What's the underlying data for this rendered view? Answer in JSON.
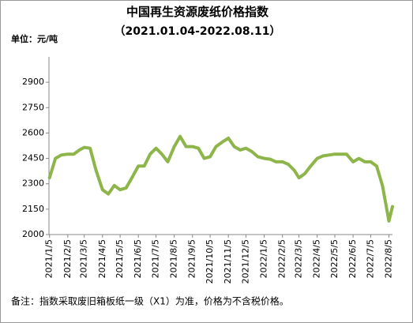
{
  "chart_data": {
    "type": "line",
    "title": "中国再生资源废纸价格指数",
    "subtitle": "（2021.01.04-2022.08.11）",
    "y_label": "单位：元/吨",
    "note": "备注：指数采取废旧箱板纸一级（X1）为准，价格为不含税价格。",
    "ylim": [
      2000,
      3050
    ],
    "yticks": [
      2000,
      2150,
      2300,
      2450,
      2600,
      2750,
      2900
    ],
    "xlim": [
      "2021/1/4",
      "2022/8/11"
    ],
    "xticks": [
      "2021/1/5",
      "2021/2/5",
      "2021/3/5",
      "2021/4/5",
      "2021/5/5",
      "2021/6/5",
      "2021/7/5",
      "2021/8/5",
      "2021/9/5",
      "2021/10/5",
      "2021/11/5",
      "2021/12/5",
      "2022/1/5",
      "2022/2/5",
      "2022/3/5",
      "2022/4/5",
      "2022/5/5",
      "2022/6/5",
      "2022/7/5",
      "2022/8/5"
    ],
    "x": [
      "2021/1/5",
      "2021/1/15",
      "2021/1/25",
      "2021/2/5",
      "2021/2/15",
      "2021/2/25",
      "2021/3/5",
      "2021/3/15",
      "2021/3/25",
      "2021/4/5",
      "2021/4/15",
      "2021/4/25",
      "2021/5/5",
      "2021/5/15",
      "2021/5/25",
      "2021/6/5",
      "2021/6/15",
      "2021/6/25",
      "2021/7/5",
      "2021/7/15",
      "2021/7/25",
      "2021/8/5",
      "2021/8/15",
      "2021/8/25",
      "2021/9/5",
      "2021/9/15",
      "2021/9/25",
      "2021/10/5",
      "2021/10/15",
      "2021/10/25",
      "2021/11/5",
      "2021/11/15",
      "2021/11/25",
      "2021/12/5",
      "2021/12/15",
      "2021/12/25",
      "2022/1/5",
      "2022/1/15",
      "2022/1/25",
      "2022/2/5",
      "2022/2/15",
      "2022/2/25",
      "2022/3/5",
      "2022/3/15",
      "2022/3/25",
      "2022/4/5",
      "2022/4/15",
      "2022/4/25",
      "2022/5/5",
      "2022/5/15",
      "2022/5/25",
      "2022/6/5",
      "2022/6/15",
      "2022/6/25",
      "2022/7/5",
      "2022/7/15",
      "2022/7/25",
      "2022/8/5",
      "2022/8/11"
    ],
    "series": [
      {
        "color": "#8db54a",
        "values": [
          2335,
          2450,
          2470,
          2475,
          2475,
          2500,
          2515,
          2510,
          2380,
          2265,
          2240,
          2290,
          2265,
          2275,
          2335,
          2405,
          2405,
          2475,
          2510,
          2475,
          2430,
          2520,
          2580,
          2520,
          2520,
          2510,
          2450,
          2460,
          2520,
          2545,
          2570,
          2520,
          2500,
          2510,
          2490,
          2460,
          2450,
          2445,
          2430,
          2430,
          2415,
          2380,
          2335,
          2360,
          2405,
          2450,
          2465,
          2470,
          2475,
          2475,
          2475,
          2430,
          2450,
          2430,
          2430,
          2405,
          2290,
          2080,
          2165
        ]
      }
    ]
  }
}
